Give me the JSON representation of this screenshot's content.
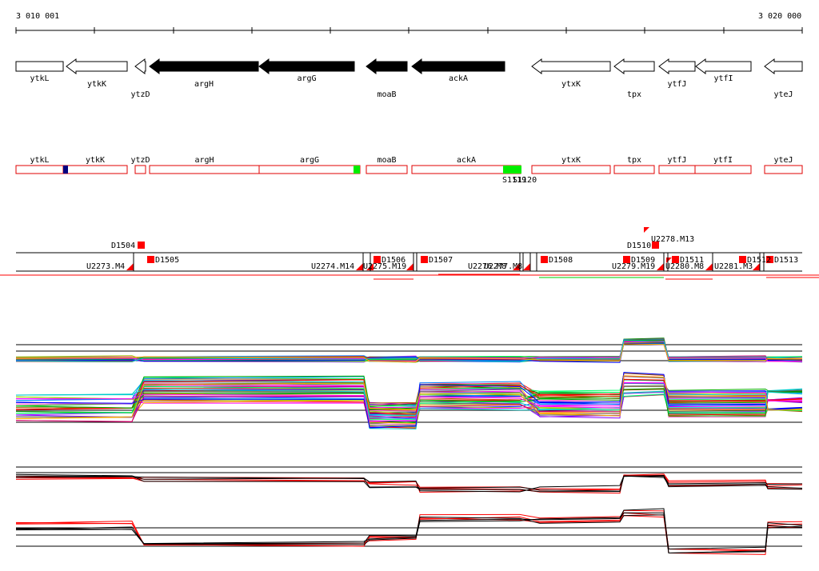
{
  "ruler": {
    "start_label": "3 010 001",
    "end_label": "3 020 000",
    "start_bp": 3010001,
    "end_bp": 3020000
  },
  "genes": [
    {
      "name": "ytkL",
      "start": 3010001,
      "end": 3010600,
      "strand": "+",
      "filled": false
    },
    {
      "name": "ytkK",
      "start": 3010640,
      "end": 3011410,
      "strand": "-",
      "filled": false
    },
    {
      "name": "ytzD",
      "start": 3011520,
      "end": 3011650,
      "strand": "-",
      "filled": false
    },
    {
      "name": "argH",
      "start": 3011700,
      "end": 3013080,
      "strand": "-",
      "filled": true
    },
    {
      "name": "argG",
      "start": 3013090,
      "end": 3014300,
      "strand": "-",
      "filled": true
    },
    {
      "name": "moaB",
      "start": 3014460,
      "end": 3014980,
      "strand": "-",
      "filled": true
    },
    {
      "name": "ackA",
      "start": 3015040,
      "end": 3016220,
      "strand": "-",
      "filled": true
    },
    {
      "name": "ytxK",
      "start": 3016560,
      "end": 3017560,
      "strand": "-",
      "filled": false
    },
    {
      "name": "tpx",
      "start": 3017610,
      "end": 3018120,
      "strand": "-",
      "filled": false
    },
    {
      "name": "ytfJ",
      "start": 3018180,
      "end": 3018640,
      "strand": "-",
      "filled": false
    },
    {
      "name": "ytfI",
      "start": 3018650,
      "end": 3019350,
      "strand": "-",
      "filled": false
    },
    {
      "name": "yteJ",
      "start": 3019520,
      "end": 3020000,
      "strand": "-",
      "filled": false
    }
  ],
  "track2": {
    "boxes": [
      {
        "name": "ytkL",
        "start": 3010001,
        "end": 3010600
      },
      {
        "name": "ytkK",
        "start": 3010600,
        "end": 3011410
      },
      {
        "name": "ytzD",
        "start": 3011520,
        "end": 3011650
      },
      {
        "name": "argH",
        "start": 3011700,
        "end": 3013090
      },
      {
        "name": "argG",
        "start": 3013090,
        "end": 3014380
      },
      {
        "name": "moaB",
        "start": 3014460,
        "end": 3014980
      },
      {
        "name": "ackA",
        "start": 3015040,
        "end": 3016420
      },
      {
        "name": "ytxK",
        "start": 3016560,
        "end": 3017560
      },
      {
        "name": "tpx",
        "start": 3017610,
        "end": 3018120
      },
      {
        "name": "ytfJ",
        "start": 3018180,
        "end": 3018640
      },
      {
        "name": "ytfI",
        "start": 3018640,
        "end": 3019350
      },
      {
        "name": "yteJ",
        "start": 3019520,
        "end": 3020000
      }
    ],
    "marks": [
      {
        "start": 3010600,
        "end": 3010660,
        "color": "#000080"
      },
      {
        "start": 3014290,
        "end": 3014380,
        "color": "#00ee00"
      },
      {
        "start": 3016200,
        "end": 3016430,
        "color": "#00ee00"
      }
    ],
    "site_label": "S1119",
    "site_label_overlap": "S1120"
  },
  "features": {
    "d_labels": [
      "D1504",
      "D1505",
      "D1506",
      "D1507",
      "D1508",
      "D1509",
      "D1510",
      "D1511",
      "D1512",
      "D1513"
    ],
    "u_labels": [
      "U2273.M4",
      "U2274.M14",
      "U2275.M19",
      "U2276.M8",
      "U2277.M8",
      "U2278.M13",
      "U2279.M19",
      "U2280.M8",
      "U2281.M3"
    ]
  },
  "colors": {
    "filled_gene": "#000000",
    "open_gene": "#ffffff",
    "box_outline": "#e00000",
    "feature_red": "#ff0000",
    "green_line": "#00cc00",
    "navy_mark": "#000080"
  }
}
